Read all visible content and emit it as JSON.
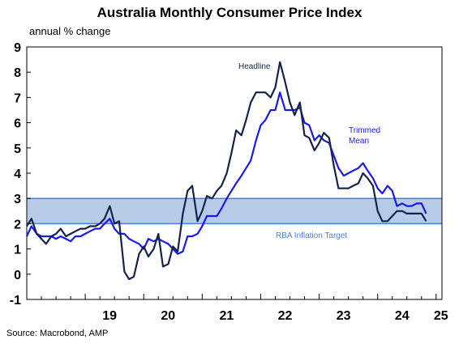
{
  "title": "Australia Monthly Consumer Price Index",
  "subtitle": "annual % change",
  "source": "Source: Macrobond, AMP",
  "annotations": {
    "headline": "Headline",
    "trimmed_line1": "Trimmed",
    "trimmed_line2": "Mean",
    "band": "RBA Inflation Target"
  },
  "colors": {
    "headline": "#14234a",
    "trimmed": "#1a1ae6",
    "band_fill": "#b8cbe6",
    "band_edge": "#4f7fc8"
  },
  "chart_data": {
    "type": "line",
    "title": "Australia Monthly Consumer Price Index",
    "ylabel": "annual % change",
    "ylim": [
      -1,
      9
    ],
    "xlim": [
      2018.0,
      2025.1
    ],
    "y_ticks": [
      "-1",
      "0",
      "1",
      "2",
      "3",
      "4",
      "5",
      "6",
      "7",
      "8",
      "9"
    ],
    "x_ticks": [
      {
        "label": "19",
        "value": 2019.0
      },
      {
        "label": "20",
        "value": 2020.0
      },
      {
        "label": "21",
        "value": 2021.0
      },
      {
        "label": "22",
        "value": 2022.0
      },
      {
        "label": "23",
        "value": 2023.0
      },
      {
        "label": "24",
        "value": 2024.0
      },
      {
        "label": "25",
        "value": 2025.0
      }
    ],
    "target_band": [
      2,
      3
    ],
    "series": [
      {
        "name": "Headline",
        "color": "#14234a",
        "points": [
          [
            2018.0,
            1.9
          ],
          [
            2018.08,
            2.2
          ],
          [
            2018.17,
            1.6
          ],
          [
            2018.25,
            1.4
          ],
          [
            2018.33,
            1.2
          ],
          [
            2018.42,
            1.5
          ],
          [
            2018.5,
            1.6
          ],
          [
            2018.58,
            1.8
          ],
          [
            2018.67,
            1.5
          ],
          [
            2018.75,
            1.6
          ],
          [
            2018.83,
            1.7
          ],
          [
            2018.92,
            1.8
          ],
          [
            2019.0,
            1.8
          ],
          [
            2019.08,
            1.9
          ],
          [
            2019.17,
            1.9
          ],
          [
            2019.25,
            2.0
          ],
          [
            2019.33,
            2.2
          ],
          [
            2019.42,
            2.7
          ],
          [
            2019.5,
            2.0
          ],
          [
            2019.58,
            2.1
          ],
          [
            2019.67,
            0.1
          ],
          [
            2019.75,
            -0.2
          ],
          [
            2019.83,
            -0.1
          ],
          [
            2019.92,
            0.8
          ],
          [
            2020.0,
            1.1
          ],
          [
            2020.08,
            0.7
          ],
          [
            2020.17,
            1.0
          ],
          [
            2020.25,
            1.6
          ],
          [
            2020.33,
            0.3
          ],
          [
            2020.42,
            0.4
          ],
          [
            2020.5,
            1.1
          ],
          [
            2020.58,
            0.9
          ],
          [
            2020.67,
            2.4
          ],
          [
            2020.75,
            3.3
          ],
          [
            2020.83,
            3.5
          ],
          [
            2020.92,
            2.1
          ],
          [
            2021.0,
            2.5
          ],
          [
            2021.08,
            3.1
          ],
          [
            2021.17,
            3.0
          ],
          [
            2021.25,
            3.3
          ],
          [
            2021.33,
            3.5
          ],
          [
            2021.42,
            4.0
          ],
          [
            2021.5,
            4.8
          ],
          [
            2021.58,
            5.7
          ],
          [
            2021.67,
            5.5
          ],
          [
            2021.75,
            6.1
          ],
          [
            2021.83,
            6.8
          ],
          [
            2021.92,
            7.2
          ],
          [
            2022.0,
            7.2
          ],
          [
            2022.08,
            7.2
          ],
          [
            2022.17,
            7.0
          ],
          [
            2022.25,
            7.4
          ],
          [
            2022.33,
            8.4
          ],
          [
            2022.42,
            7.6
          ],
          [
            2022.5,
            6.8
          ],
          [
            2022.58,
            6.3
          ],
          [
            2022.67,
            6.8
          ],
          [
            2022.75,
            5.5
          ],
          [
            2022.83,
            5.4
          ],
          [
            2022.92,
            4.9
          ],
          [
            2023.0,
            5.2
          ],
          [
            2023.08,
            5.6
          ],
          [
            2023.17,
            5.4
          ],
          [
            2023.25,
            4.3
          ],
          [
            2023.33,
            3.4
          ],
          [
            2023.42,
            3.4
          ],
          [
            2023.5,
            3.4
          ],
          [
            2023.58,
            3.5
          ],
          [
            2023.67,
            3.6
          ],
          [
            2023.75,
            4.0
          ],
          [
            2023.83,
            3.8
          ],
          [
            2023.92,
            3.5
          ],
          [
            2024.0,
            2.5
          ],
          [
            2024.08,
            2.1
          ],
          [
            2024.17,
            2.1
          ],
          [
            2024.25,
            2.3
          ],
          [
            2024.33,
            2.5
          ],
          [
            2024.42,
            2.5
          ],
          [
            2024.5,
            2.4
          ],
          [
            2024.58,
            2.4
          ],
          [
            2024.67,
            2.4
          ],
          [
            2024.75,
            2.4
          ],
          [
            2024.83,
            2.1
          ]
        ]
      },
      {
        "name": "Trimmed Mean",
        "color": "#1a1ae6",
        "points": [
          [
            2018.0,
            1.5
          ],
          [
            2018.08,
            1.9
          ],
          [
            2018.17,
            1.6
          ],
          [
            2018.25,
            1.5
          ],
          [
            2018.33,
            1.5
          ],
          [
            2018.42,
            1.5
          ],
          [
            2018.5,
            1.4
          ],
          [
            2018.58,
            1.5
          ],
          [
            2018.67,
            1.4
          ],
          [
            2018.75,
            1.3
          ],
          [
            2018.83,
            1.5
          ],
          [
            2018.92,
            1.5
          ],
          [
            2019.0,
            1.6
          ],
          [
            2019.08,
            1.7
          ],
          [
            2019.17,
            1.8
          ],
          [
            2019.25,
            1.8
          ],
          [
            2019.33,
            2.0
          ],
          [
            2019.42,
            2.2
          ],
          [
            2019.5,
            1.8
          ],
          [
            2019.58,
            1.6
          ],
          [
            2019.67,
            1.6
          ],
          [
            2019.75,
            1.4
          ],
          [
            2019.83,
            1.3
          ],
          [
            2019.92,
            1.2
          ],
          [
            2020.0,
            1.0
          ],
          [
            2020.08,
            1.4
          ],
          [
            2020.17,
            1.3
          ],
          [
            2020.25,
            1.4
          ],
          [
            2020.33,
            1.3
          ],
          [
            2020.42,
            1.2
          ],
          [
            2020.5,
            1.0
          ],
          [
            2020.58,
            0.8
          ],
          [
            2020.67,
            0.9
          ],
          [
            2020.75,
            1.5
          ],
          [
            2020.83,
            1.5
          ],
          [
            2020.92,
            1.6
          ],
          [
            2021.0,
            1.9
          ],
          [
            2021.08,
            2.3
          ],
          [
            2021.17,
            2.3
          ],
          [
            2021.25,
            2.3
          ],
          [
            2021.33,
            2.6
          ],
          [
            2021.42,
            3.0
          ],
          [
            2021.5,
            3.3
          ],
          [
            2021.58,
            3.6
          ],
          [
            2021.67,
            3.9
          ],
          [
            2021.75,
            4.2
          ],
          [
            2021.83,
            4.5
          ],
          [
            2021.92,
            5.3
          ],
          [
            2022.0,
            5.9
          ],
          [
            2022.08,
            6.1
          ],
          [
            2022.17,
            6.5
          ],
          [
            2022.25,
            6.5
          ],
          [
            2022.33,
            7.2
          ],
          [
            2022.42,
            6.5
          ],
          [
            2022.5,
            6.5
          ],
          [
            2022.58,
            6.5
          ],
          [
            2022.67,
            6.6
          ],
          [
            2022.75,
            6.0
          ],
          [
            2022.83,
            5.9
          ],
          [
            2022.92,
            5.3
          ],
          [
            2023.0,
            5.5
          ],
          [
            2023.08,
            5.3
          ],
          [
            2023.17,
            5.2
          ],
          [
            2023.25,
            4.7
          ],
          [
            2023.33,
            4.2
          ],
          [
            2023.42,
            3.9
          ],
          [
            2023.5,
            4.0
          ],
          [
            2023.58,
            4.1
          ],
          [
            2023.67,
            4.2
          ],
          [
            2023.75,
            4.4
          ],
          [
            2023.83,
            4.1
          ],
          [
            2023.92,
            3.8
          ],
          [
            2024.0,
            3.4
          ],
          [
            2024.08,
            3.2
          ],
          [
            2024.17,
            3.5
          ],
          [
            2024.25,
            3.3
          ],
          [
            2024.33,
            2.7
          ],
          [
            2024.42,
            2.8
          ],
          [
            2024.5,
            2.7
          ],
          [
            2024.58,
            2.7
          ],
          [
            2024.67,
            2.8
          ],
          [
            2024.75,
            2.8
          ],
          [
            2024.83,
            2.4
          ]
        ]
      }
    ]
  }
}
